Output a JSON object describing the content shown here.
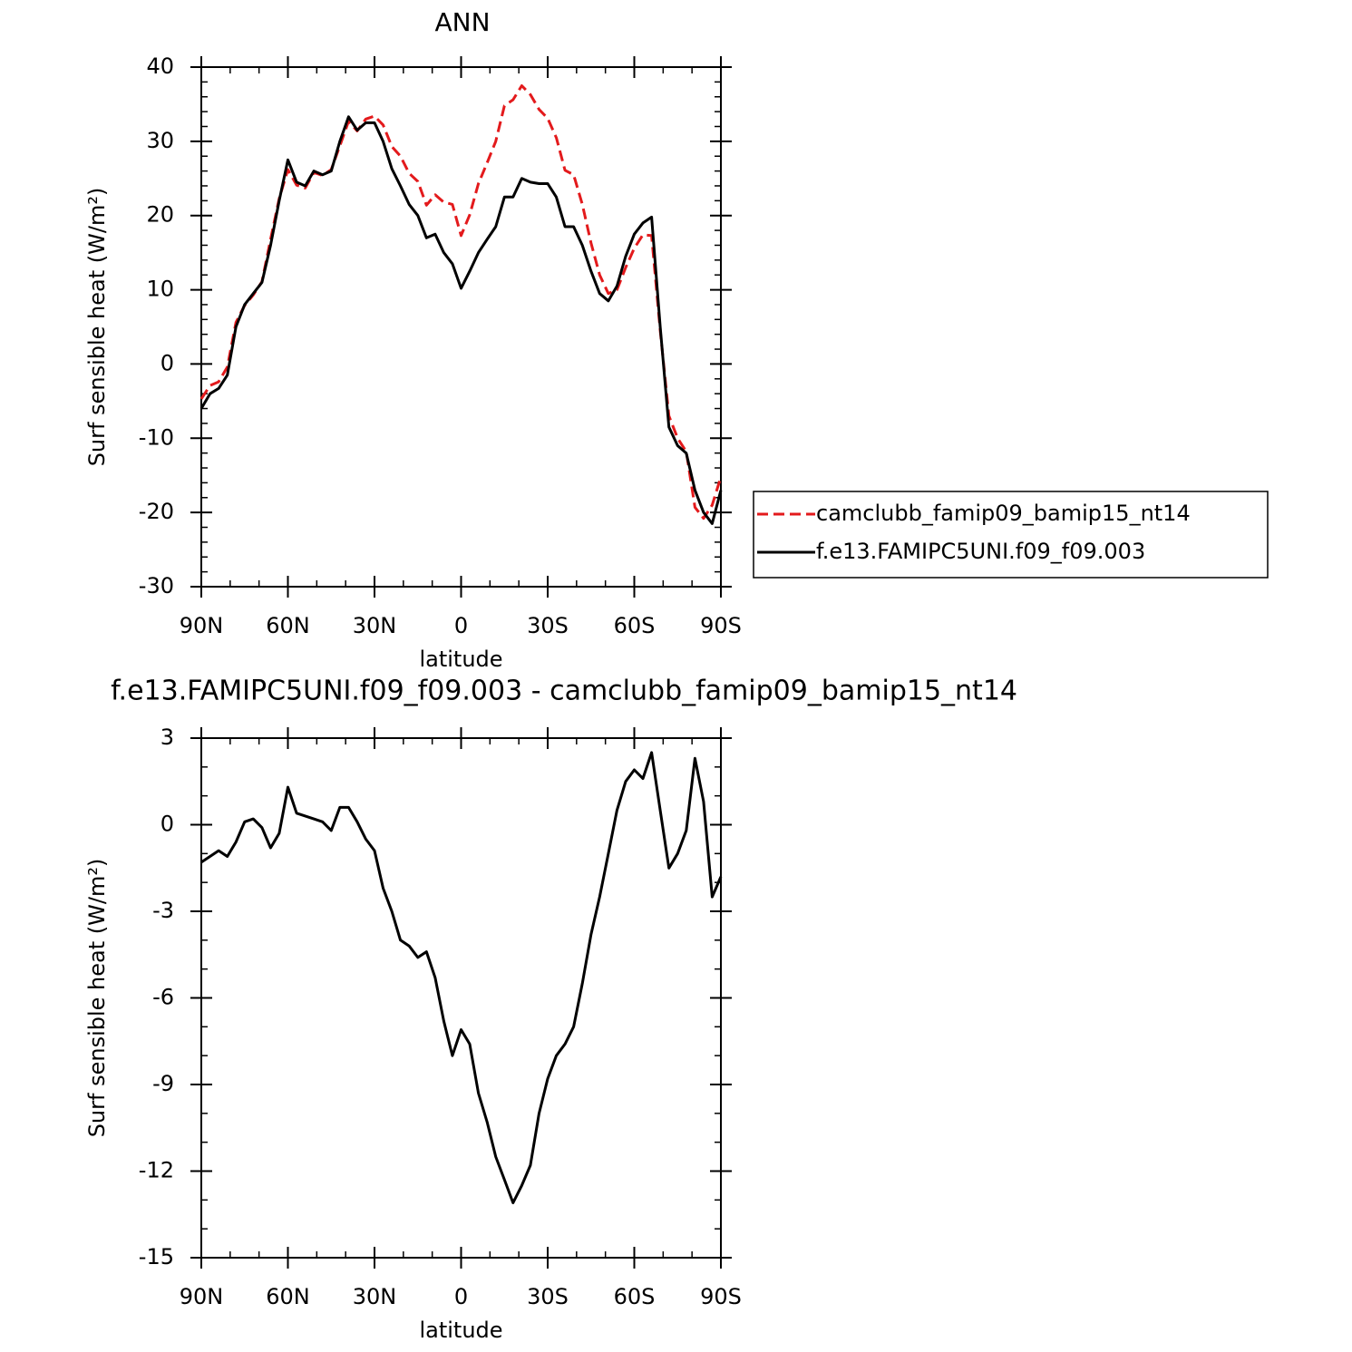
{
  "chart_data": [
    {
      "type": "line",
      "title": "ANN",
      "xlabel": "latitude",
      "ylabel": "Surf sensible heat (W/m²)",
      "x": [
        90,
        87,
        84,
        81,
        78,
        75,
        72,
        69,
        66,
        63,
        60,
        57,
        54,
        51,
        48,
        45,
        42,
        39,
        36,
        33,
        30,
        27,
        24,
        21,
        18,
        15,
        12,
        9,
        6,
        3,
        0,
        -3,
        -6,
        -9,
        -12,
        -15,
        -18,
        -21,
        -24,
        -27,
        -30,
        -33,
        -36,
        -39,
        -42,
        -45,
        -48,
        -51,
        -54,
        -57,
        -60,
        -63,
        -66,
        -69,
        -72,
        -75,
        -78,
        -81,
        -84,
        -87,
        -90
      ],
      "series": [
        {
          "name": "camclubb_famip09_bamip15_nt14",
          "color": "#e31a1c",
          "line_style": "dashed",
          "values": [
            -4.7,
            -2.9,
            -2.4,
            -0.4,
            5.6,
            7.9,
            9.3,
            11.1,
            16.8,
            22.3,
            26.2,
            24.1,
            23.7,
            25.8,
            25.4,
            26.2,
            29.4,
            32.7,
            31.4,
            33.0,
            33.4,
            32.2,
            29.3,
            28.0,
            25.7,
            24.6,
            21.4,
            22.8,
            21.8,
            21.5,
            17.3,
            20.1,
            24.3,
            27.1,
            30.0,
            34.8,
            35.6,
            37.5,
            36.3,
            34.3,
            33.1,
            30.5,
            26.1,
            25.5,
            21.5,
            16.3,
            12.0,
            9.5,
            10.0,
            13.0,
            15.6,
            17.4,
            17.3,
            4.5,
            -7.0,
            -10.0,
            -11.8,
            -19.3,
            -20.8,
            -19.0,
            -15.2
          ]
        },
        {
          "name": "f.e13.FAMIPC5UNI.f09_f09.003",
          "color": "#000000",
          "line_style": "solid",
          "values": [
            -6,
            -4,
            -3.3,
            -1.5,
            5,
            8,
            9.5,
            11,
            16,
            22,
            27.5,
            24.5,
            24,
            26,
            25.5,
            26,
            30,
            33.3,
            31.5,
            32.5,
            32.5,
            30,
            26.3,
            24,
            21.5,
            20,
            17,
            17.5,
            15,
            13.5,
            10.2,
            12.5,
            15,
            16.8,
            18.5,
            22.5,
            22.5,
            25,
            24.5,
            24.3,
            24.3,
            22.5,
            18.5,
            18.5,
            16,
            12.5,
            9.5,
            8.5,
            10.5,
            14.5,
            17.5,
            19,
            19.8,
            5,
            -8.5,
            -11,
            -12,
            -17,
            -20,
            -21.5,
            -17
          ]
        }
      ],
      "xlim": [
        90,
        -90
      ],
      "xticks": [
        {
          "value": 90,
          "label": "90N"
        },
        {
          "value": 60,
          "label": "60N"
        },
        {
          "value": 30,
          "label": "30N"
        },
        0,
        {
          "value": -30,
          "label": "30S"
        },
        {
          "value": -60,
          "label": "60S"
        },
        {
          "value": -90,
          "label": "90S"
        }
      ],
      "ylim": [
        -30,
        40
      ],
      "yticks": [
        -30,
        -20,
        -10,
        0,
        10,
        20,
        30,
        40
      ],
      "legend": "right"
    },
    {
      "type": "line",
      "title": "f.e13.FAMIPC5UNI.f09_f09.003 - camclubb_famip09_bamip15_nt14",
      "xlabel": "latitude",
      "ylabel": "Surf sensible heat (W/m²)",
      "x": [
        90,
        87,
        84,
        81,
        78,
        75,
        72,
        69,
        66,
        63,
        60,
        57,
        54,
        51,
        48,
        45,
        42,
        39,
        36,
        33,
        30,
        27,
        24,
        21,
        18,
        15,
        12,
        9,
        6,
        3,
        0,
        -3,
        -6,
        -9,
        -12,
        -15,
        -18,
        -21,
        -24,
        -27,
        -30,
        -33,
        -36,
        -39,
        -42,
        -45,
        -48,
        -51,
        -54,
        -57,
        -60,
        -63,
        -66,
        -69,
        -72,
        -75,
        -78,
        -81,
        -84,
        -87,
        -90
      ],
      "series": [
        {
          "color": "#000000",
          "line_style": "solid",
          "values": [
            -1.3,
            -1.1,
            -0.9,
            -1.1,
            -0.6,
            0.1,
            0.2,
            -0.1,
            -0.8,
            -0.3,
            1.3,
            0.4,
            0.3,
            0.2,
            0.1,
            -0.2,
            0.6,
            0.6,
            0.1,
            -0.5,
            -0.9,
            -2.2,
            -3.0,
            -4.0,
            -4.2,
            -4.6,
            -4.4,
            -5.3,
            -6.8,
            -8.0,
            -7.1,
            -7.6,
            -9.3,
            -10.3,
            -11.5,
            -12.3,
            -13.1,
            -12.5,
            -11.8,
            -10.0,
            -8.8,
            -8.0,
            -7.6,
            -7.0,
            -5.5,
            -3.8,
            -2.5,
            -1.0,
            0.5,
            1.5,
            1.9,
            1.6,
            2.5,
            0.5,
            -1.5,
            -1.0,
            -0.2,
            2.3,
            0.8,
            -2.5,
            -1.8
          ]
        }
      ],
      "xlim": [
        90,
        -90
      ],
      "xticks": [
        {
          "value": 90,
          "label": "90N"
        },
        {
          "value": 60,
          "label": "60N"
        },
        {
          "value": 30,
          "label": "30N"
        },
        0,
        {
          "value": -30,
          "label": "30S"
        },
        {
          "value": -60,
          "label": "60S"
        },
        {
          "value": -90,
          "label": "90S"
        }
      ],
      "ylim": [
        -15,
        3
      ],
      "yticks": [
        -15,
        -12,
        -9,
        -6,
        -3,
        0,
        3
      ]
    }
  ]
}
